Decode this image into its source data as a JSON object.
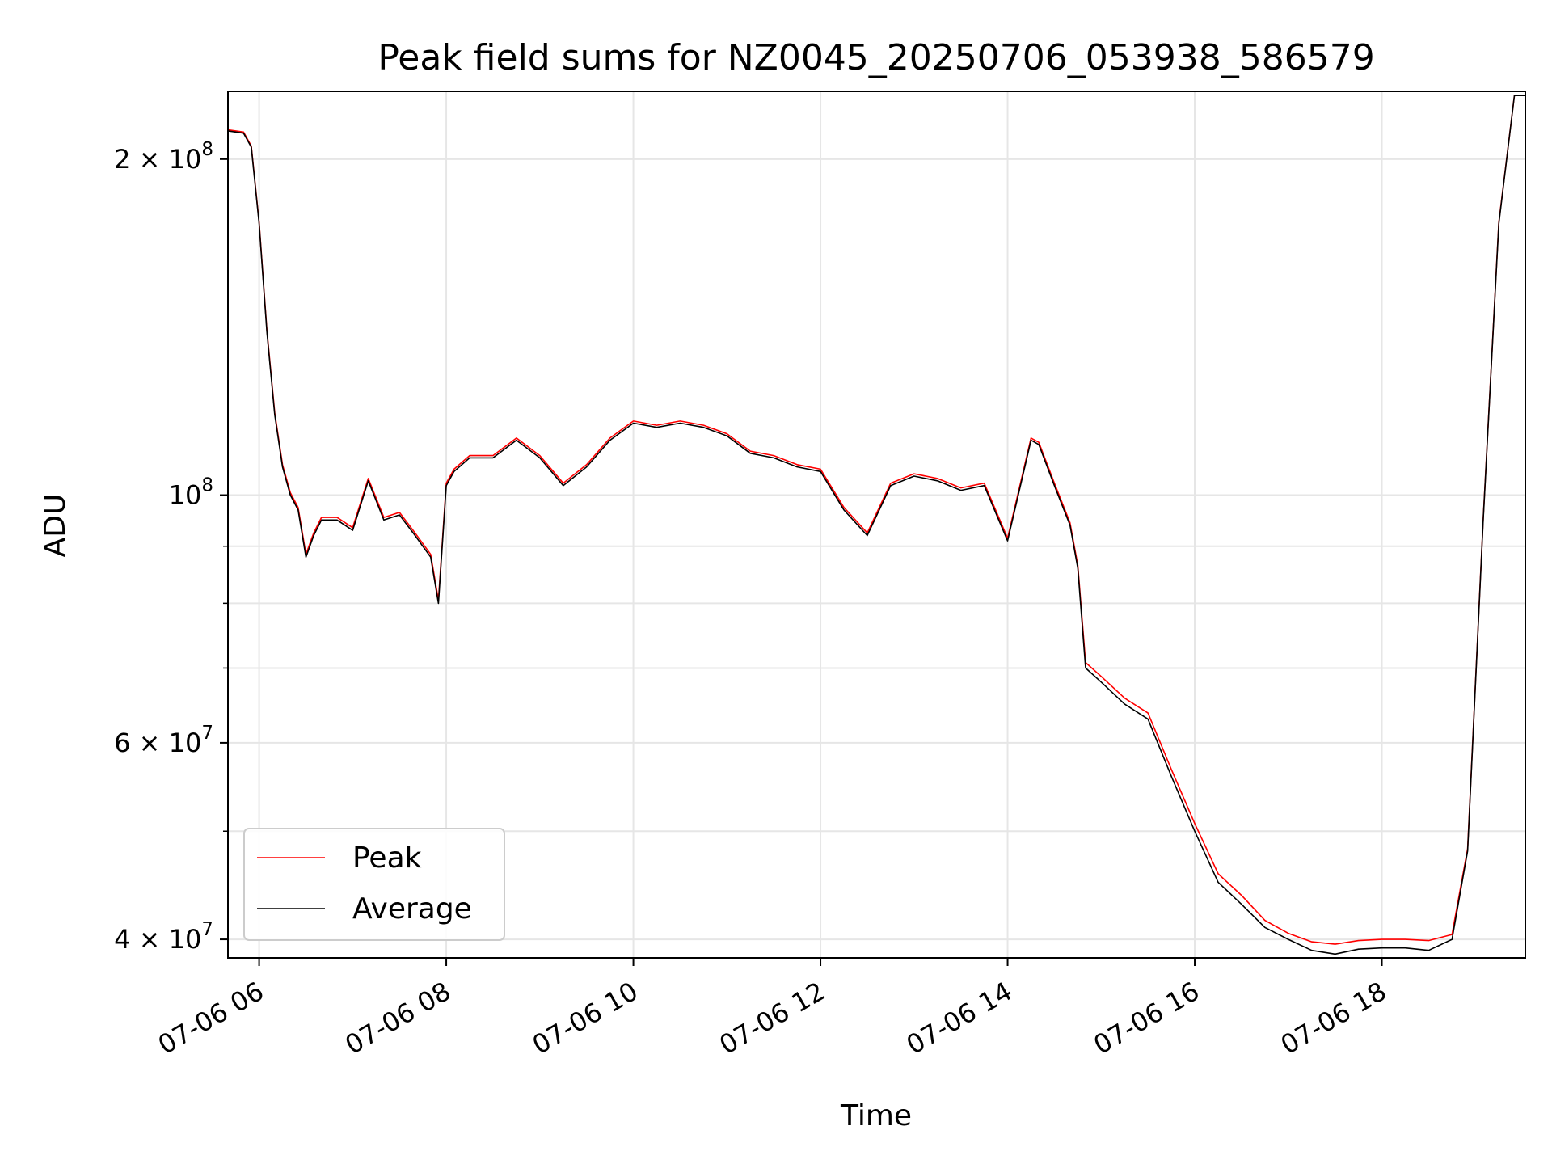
{
  "chart_data": {
    "type": "line",
    "title": "Peak field sums for NZ0045_20250706_053938_586579",
    "xlabel": "Time",
    "ylabel": "ADU",
    "yscale": "log",
    "ylim": [
      38500000,
      230000000
    ],
    "xlim": [
      "07-06 05:40",
      "07-06 19:32"
    ],
    "grid": true,
    "legend_position": "lower-left",
    "x_ticks": [
      "07-06 06",
      "07-06 08",
      "07-06 10",
      "07-06 12",
      "07-06 14",
      "07-06 16",
      "07-06 18"
    ],
    "x_tick_times": [
      "07-06 06:00",
      "07-06 08:00",
      "07-06 10:00",
      "07-06 12:00",
      "07-06 14:00",
      "07-06 16:00",
      "07-06 18:00"
    ],
    "y_major_ticks": [
      {
        "value": 200000000,
        "mantissa": "2",
        "exp": "8"
      },
      {
        "value": 100000000,
        "mantissa": "",
        "exp": "8"
      },
      {
        "value": 60000000,
        "mantissa": "6",
        "exp": "7"
      },
      {
        "value": 40000000,
        "mantissa": "4",
        "exp": "7"
      }
    ],
    "y_minor_ticks": [
      90000000,
      80000000,
      70000000,
      50000000
    ],
    "series": [
      {
        "name": "Average",
        "color": "#000000",
        "x": [
          "05:40",
          "05:50",
          "05:55",
          "06:00",
          "06:05",
          "06:10",
          "06:15",
          "06:20",
          "06:25",
          "06:30",
          "06:35",
          "06:40",
          "06:50",
          "07:00",
          "07:10",
          "07:20",
          "07:30",
          "07:40",
          "07:50",
          "07:55",
          "08:00",
          "08:05",
          "08:15",
          "08:30",
          "08:45",
          "09:00",
          "09:15",
          "09:30",
          "09:45",
          "10:00",
          "10:15",
          "10:30",
          "10:45",
          "11:00",
          "11:15",
          "11:30",
          "11:45",
          "12:00",
          "12:15",
          "12:30",
          "12:45",
          "13:00",
          "13:15",
          "13:30",
          "13:45",
          "14:00",
          "14:15",
          "14:20",
          "14:30",
          "14:40",
          "14:45",
          "14:50",
          "15:00",
          "15:15",
          "15:30",
          "15:45",
          "16:00",
          "16:15",
          "16:30",
          "16:45",
          "17:00",
          "17:15",
          "17:30",
          "17:45",
          "18:00",
          "18:15",
          "18:30",
          "18:45",
          "18:55",
          "19:05",
          "19:15",
          "19:25",
          "19:32"
        ],
        "y": [
          212000000,
          211000000,
          205000000,
          175000000,
          140000000,
          118000000,
          106000000,
          100000000,
          97000000,
          88000000,
          92000000,
          95000000,
          95000000,
          93000000,
          103000000,
          95000000,
          96000000,
          92000000,
          88000000,
          80000000,
          102000000,
          105000000,
          108000000,
          108000000,
          112000000,
          108000000,
          102000000,
          106000000,
          112000000,
          116000000,
          115000000,
          116000000,
          115000000,
          113000000,
          109000000,
          108000000,
          106000000,
          105000000,
          97000000,
          92000000,
          102000000,
          104000000,
          103000000,
          101000000,
          102000000,
          91000000,
          112000000,
          111000000,
          102000000,
          94000000,
          86000000,
          70000000,
          68000000,
          65000000,
          63000000,
          56000000,
          50000000,
          45000000,
          43000000,
          41000000,
          40000000,
          39100000,
          38800000,
          39200000,
          39300000,
          39300000,
          39100000,
          40000000,
          48000000,
          95000000,
          175000000,
          228000000,
          228000000
        ]
      },
      {
        "name": "Peak",
        "color": "#ff0000",
        "x": [
          "05:40",
          "05:50",
          "05:55",
          "06:00",
          "06:05",
          "06:10",
          "06:15",
          "06:20",
          "06:25",
          "06:30",
          "06:35",
          "06:40",
          "06:50",
          "07:00",
          "07:10",
          "07:20",
          "07:30",
          "07:40",
          "07:50",
          "07:55",
          "08:00",
          "08:05",
          "08:15",
          "08:30",
          "08:45",
          "09:00",
          "09:15",
          "09:30",
          "09:45",
          "10:00",
          "10:15",
          "10:30",
          "10:45",
          "11:00",
          "11:15",
          "11:30",
          "11:45",
          "12:00",
          "12:15",
          "12:30",
          "12:45",
          "13:00",
          "13:15",
          "13:30",
          "13:45",
          "14:00",
          "14:15",
          "14:20",
          "14:30",
          "14:40",
          "14:45",
          "14:50",
          "15:00",
          "15:15",
          "15:30",
          "15:45",
          "16:00",
          "16:15",
          "16:30",
          "16:45",
          "17:00",
          "17:15",
          "17:30",
          "17:45",
          "18:00",
          "18:15",
          "18:30",
          "18:45",
          "18:55",
          "19:05",
          "19:15",
          "19:25",
          "19:32"
        ],
        "y": [
          212500000,
          211500000,
          205500000,
          175500000,
          140500000,
          118500000,
          106500000,
          100500000,
          97500000,
          88500000,
          92500000,
          95500000,
          95500000,
          93500000,
          103500000,
          95500000,
          96500000,
          92500000,
          88500000,
          80500000,
          102500000,
          105500000,
          108500000,
          108500000,
          112500000,
          108500000,
          102500000,
          106500000,
          112500000,
          116500000,
          115500000,
          116500000,
          115500000,
          113500000,
          109500000,
          108500000,
          106500000,
          105500000,
          97500000,
          92500000,
          102500000,
          104500000,
          103500000,
          101500000,
          102500000,
          91500000,
          112500000,
          111500000,
          102500000,
          94500000,
          86500000,
          70800000,
          68800000,
          65800000,
          63800000,
          56800000,
          50800000,
          45800000,
          43800000,
          41600000,
          40500000,
          39800000,
          39600000,
          39900000,
          40000000,
          40000000,
          39900000,
          40400000,
          48200000,
          95200000,
          175500000,
          228000000,
          228000000
        ]
      }
    ]
  }
}
